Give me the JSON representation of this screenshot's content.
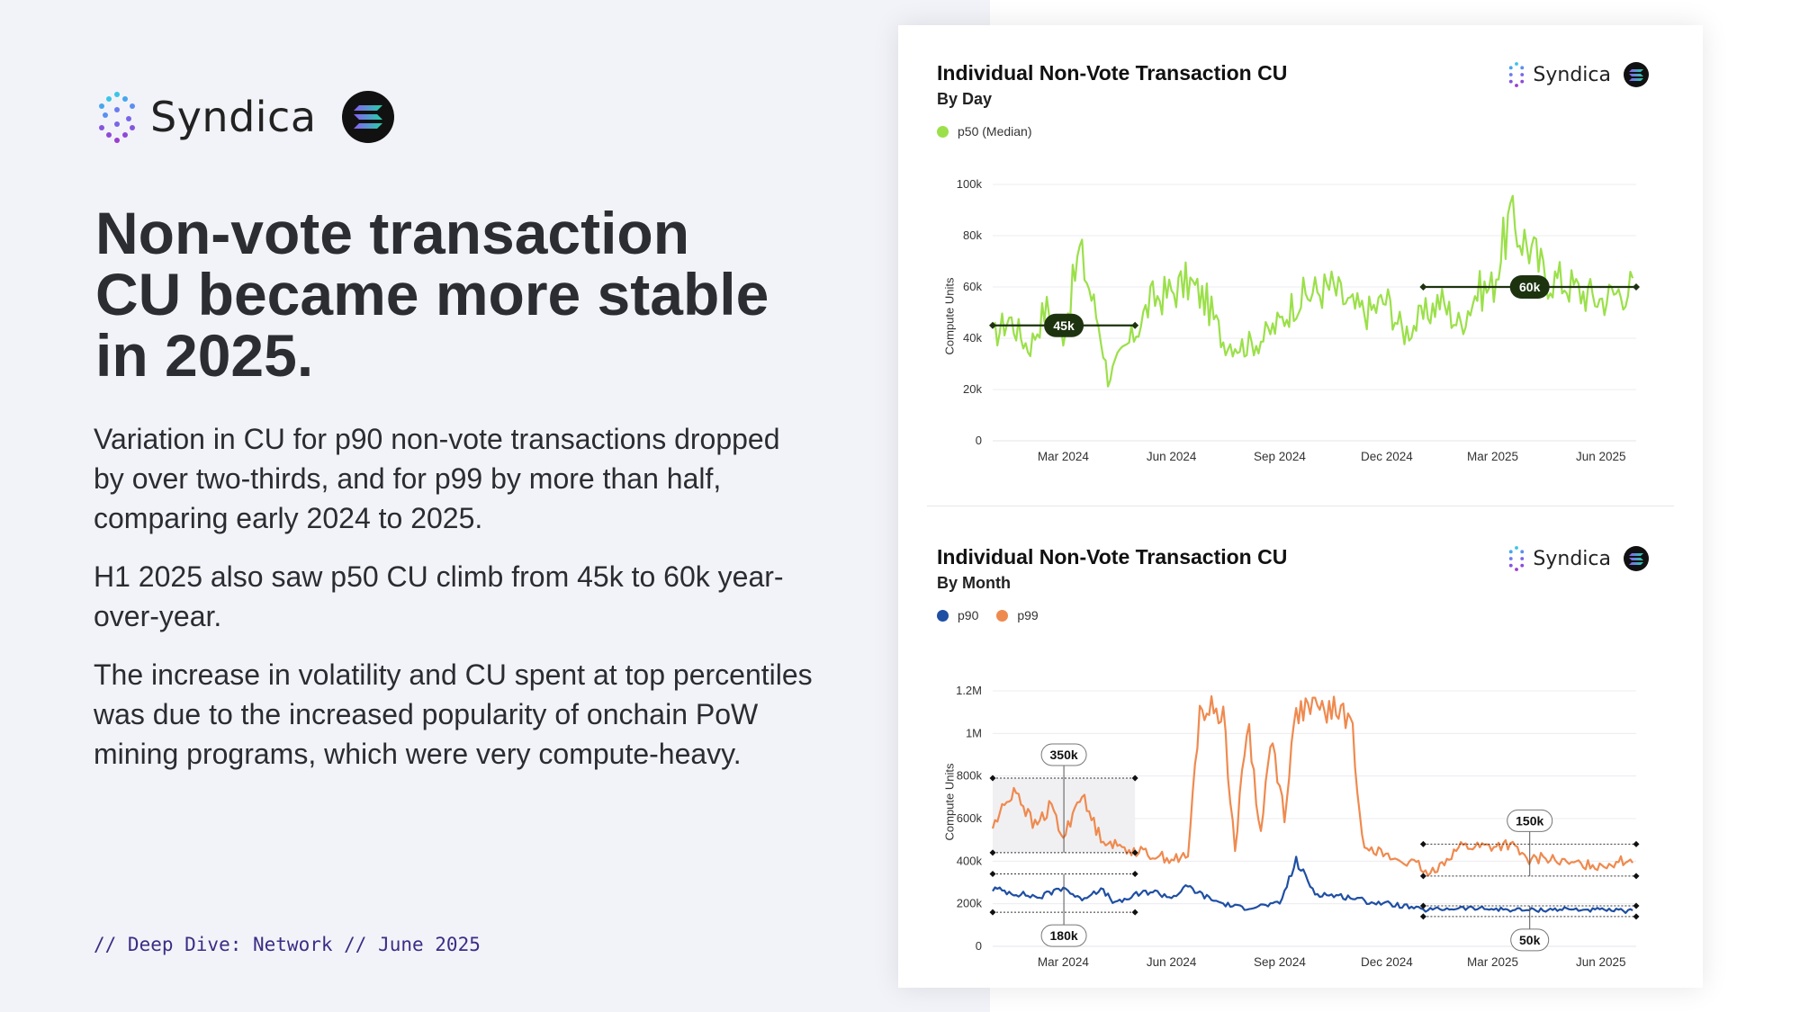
{
  "brand": {
    "name": "Syndica"
  },
  "headline": "Non-vote transaction CU became more stable in 2025.",
  "paragraphs": [
    "Variation in CU for p90 non-vote transactions dropped by over two-thirds, and for p99 by more than half, comparing early 2024 to 2025.",
    "H1 2025 also saw p50 CU climb from 45k to 60k year-over-year.",
    "The increase in volatility and CU spent at top percentiles was due to the increased popularity of onchain PoW mining programs, which were very compute-heavy."
  ],
  "footer": "// Deep Dive: Network // June 2025",
  "colors": {
    "p50": "#9be04a",
    "p90": "#1f4fa3",
    "p99": "#ef8a4f",
    "marker": "#1d3310",
    "text": "#2c2d33",
    "accent": "#3b2d86"
  },
  "icons": {
    "brand": "syndica-logo-icon",
    "network": "solana-icon"
  },
  "chart_data": [
    {
      "type": "line",
      "title": "Individual Non-Vote Transaction CU",
      "subtitle": "By Day",
      "ylabel": "Compute Units",
      "ylim": [
        0,
        100000
      ],
      "yticks": [
        0,
        20000,
        40000,
        60000,
        80000,
        100000
      ],
      "ytick_labels": [
        "0",
        "20k",
        "40k",
        "60k",
        "80k",
        "100k"
      ],
      "xticks": [
        "Mar 2024",
        "Jun 2024",
        "Sep 2024",
        "Dec 2024",
        "Mar 2025",
        "Jun 2025"
      ],
      "xlim": [
        "2024-01-01",
        "2025-07-01"
      ],
      "grid": true,
      "legend_position": "top-left",
      "series": [
        {
          "name": "p50 (Median)",
          "color": "#9be04a",
          "x": [
            "2024-01-01",
            "2024-01-15",
            "2024-02-01",
            "2024-02-15",
            "2024-03-01",
            "2024-03-15",
            "2024-04-01",
            "2024-04-08",
            "2024-04-15",
            "2024-05-01",
            "2024-05-15",
            "2024-06-01",
            "2024-06-15",
            "2024-07-01",
            "2024-07-15",
            "2024-08-01",
            "2024-08-15",
            "2024-09-01",
            "2024-09-15",
            "2024-10-01",
            "2024-10-15",
            "2024-11-01",
            "2024-11-15",
            "2024-12-01",
            "2024-12-15",
            "2025-01-01",
            "2025-01-15",
            "2025-02-01",
            "2025-02-15",
            "2025-03-01",
            "2025-03-15",
            "2025-04-01",
            "2025-04-15",
            "2025-05-01",
            "2025-05-15",
            "2025-06-01",
            "2025-06-15",
            "2025-06-28"
          ],
          "values": [
            40000,
            48000,
            36000,
            52000,
            42000,
            74000,
            44000,
            24000,
            30000,
            42000,
            55000,
            58000,
            62000,
            54000,
            39000,
            37000,
            39000,
            46000,
            55000,
            58000,
            60000,
            52000,
            50000,
            55000,
            42000,
            48000,
            55000,
            45000,
            58000,
            60000,
            86000,
            76000,
            64000,
            62000,
            58000,
            55000,
            58000,
            60000
          ]
        }
      ],
      "annotations": [
        {
          "label": "45k",
          "from": "2024-01-01",
          "to": "2024-05-01",
          "y": 45000
        },
        {
          "label": "60k",
          "from": "2025-01-01",
          "to": "2025-07-01",
          "y": 60000
        }
      ]
    },
    {
      "type": "line",
      "title": "Individual Non-Vote Transaction CU",
      "subtitle": "By Month",
      "ylabel": "Compute Units",
      "ylim": [
        0,
        1200000
      ],
      "yticks": [
        0,
        200000,
        400000,
        600000,
        800000,
        1000000,
        1200000
      ],
      "ytick_labels": [
        "0",
        "200k",
        "400k",
        "600k",
        "800k",
        "1M",
        "1.2M"
      ],
      "xticks": [
        "Mar 2024",
        "Jun 2024",
        "Sep 2024",
        "Dec 2024",
        "Mar 2025",
        "Jun 2025"
      ],
      "xlim": [
        "2024-01-01",
        "2025-07-01"
      ],
      "grid": true,
      "legend_position": "top-left",
      "series": [
        {
          "name": "p90",
          "color": "#1f4fa3",
          "x": [
            "2024-01-01",
            "2024-01-20",
            "2024-02-10",
            "2024-03-01",
            "2024-03-15",
            "2024-04-01",
            "2024-04-15",
            "2024-05-01",
            "2024-05-15",
            "2024-06-01",
            "2024-06-15",
            "2024-07-01",
            "2024-07-15",
            "2024-08-01",
            "2024-08-15",
            "2024-09-01",
            "2024-09-15",
            "2024-10-01",
            "2024-10-15",
            "2024-11-01",
            "2024-11-15",
            "2024-12-01",
            "2024-12-15",
            "2025-01-01",
            "2025-02-01",
            "2025-03-01",
            "2025-04-01",
            "2025-05-01",
            "2025-06-01",
            "2025-06-28"
          ],
          "values": [
            270000,
            250000,
            230000,
            280000,
            220000,
            270000,
            200000,
            240000,
            260000,
            230000,
            280000,
            230000,
            200000,
            180000,
            190000,
            200000,
            400000,
            250000,
            240000,
            230000,
            210000,
            200000,
            190000,
            170000,
            180000,
            175000,
            170000,
            175000,
            170000,
            165000
          ]
        },
        {
          "name": "p99",
          "color": "#ef8a4f",
          "x": [
            "2024-01-01",
            "2024-01-20",
            "2024-02-05",
            "2024-02-20",
            "2024-03-01",
            "2024-03-15",
            "2024-04-01",
            "2024-04-15",
            "2024-05-01",
            "2024-05-15",
            "2024-05-25",
            "2024-06-01",
            "2024-06-15",
            "2024-06-25",
            "2024-07-05",
            "2024-07-15",
            "2024-07-25",
            "2024-08-05",
            "2024-08-15",
            "2024-08-25",
            "2024-09-05",
            "2024-09-15",
            "2024-10-01",
            "2024-10-15",
            "2024-10-25",
            "2024-11-01",
            "2024-11-10",
            "2024-12-01",
            "2024-12-15",
            "2024-12-28",
            "2025-01-05",
            "2025-02-01",
            "2025-03-01",
            "2025-03-15",
            "2025-04-01",
            "2025-04-15",
            "2025-05-01",
            "2025-06-01",
            "2025-06-28"
          ],
          "values": [
            560000,
            750000,
            560000,
            660000,
            500000,
            720000,
            520000,
            470000,
            450000,
            430000,
            420000,
            410000,
            420000,
            1110000,
            1110000,
            1100000,
            450000,
            1080000,
            520000,
            980000,
            620000,
            1110000,
            1110000,
            1110000,
            1100000,
            1050000,
            500000,
            420000,
            400000,
            380000,
            330000,
            470000,
            470000,
            480000,
            400000,
            420000,
            390000,
            380000,
            410000
          ]
        }
      ],
      "annotations": [
        {
          "label": "350k",
          "series": "p99",
          "from": "2024-01-01",
          "to": "2024-05-01",
          "y_low": 440000,
          "y_high": 790000
        },
        {
          "label": "180k",
          "series": "p90",
          "from": "2024-01-01",
          "to": "2024-05-01",
          "y_low": 160000,
          "y_high": 340000
        },
        {
          "label": "150k",
          "series": "p99",
          "from": "2025-01-01",
          "to": "2025-07-01",
          "y_low": 330000,
          "y_high": 480000
        },
        {
          "label": "50k",
          "series": "p90",
          "from": "2025-01-01",
          "to": "2025-07-01",
          "y_low": 140000,
          "y_high": 190000
        }
      ]
    }
  ]
}
